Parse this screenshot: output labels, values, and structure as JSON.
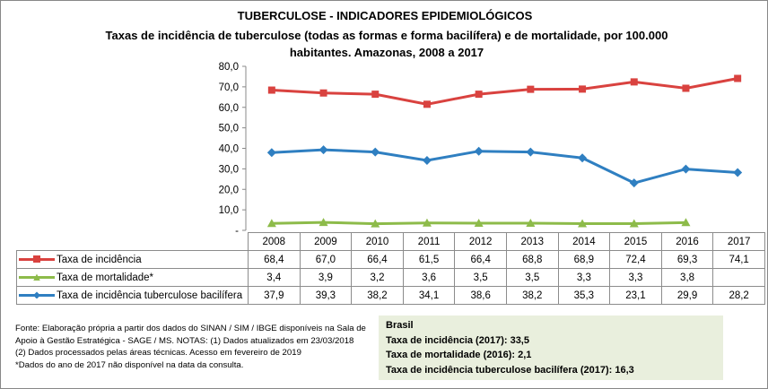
{
  "title": "TUBERCULOSE - INDICADORES EPIDEMIOLÓGICOS",
  "subtitle": "Taxas de incidência de tuberculose (todas as formas e forma bacilífera) e de mortalidade,  por 100.000 habitantes. Amazonas, 2008 a 2017",
  "chart_data": {
    "type": "line",
    "categories": [
      "2008",
      "2009",
      "2010",
      "2011",
      "2012",
      "2013",
      "2014",
      "2015",
      "2016",
      "2017"
    ],
    "ylim": [
      0,
      80
    ],
    "yticks": [
      "-",
      "10,0",
      "20,0",
      "30,0",
      "40,0",
      "50,0",
      "60,0",
      "70,0",
      "80,0"
    ],
    "grid": false,
    "legend": "data-table",
    "series": [
      {
        "name": "Taxa de incidência",
        "color": "#d9423f",
        "marker": "square",
        "values": [
          68.4,
          67.0,
          66.4,
          61.5,
          66.4,
          68.8,
          68.9,
          72.4,
          69.3,
          74.1
        ],
        "labels": [
          "68,4",
          "67,0",
          "66,4",
          "61,5",
          "66,4",
          "68,8",
          "68,9",
          "72,4",
          "69,3",
          "74,1"
        ]
      },
      {
        "name": "Taxa de mortalidade*",
        "color": "#8dbb4a",
        "marker": "triangle",
        "values": [
          3.4,
          3.9,
          3.2,
          3.6,
          3.5,
          3.5,
          3.3,
          3.3,
          3.8,
          null
        ],
        "labels": [
          "3,4",
          "3,9",
          "3,2",
          "3,6",
          "3,5",
          "3,5",
          "3,3",
          "3,3",
          "3,8",
          ""
        ]
      },
      {
        "name": "Taxa de incidência tuberculose bacilífera",
        "color": "#2f7fc1",
        "marker": "diamond",
        "values": [
          37.9,
          39.3,
          38.2,
          34.1,
          38.6,
          38.2,
          35.3,
          23.1,
          29.9,
          28.2
        ],
        "labels": [
          "37,9",
          "39,3",
          "38,2",
          "34,1",
          "38,6",
          "38,2",
          "35,3",
          "23,1",
          "29,9",
          "28,2"
        ]
      }
    ]
  },
  "notes": [
    "Fonte: Elaboração própria a partir dos dados do SINAN / SIM / IBGE disponíveis na Sala de Apoio à Gestão Estratégica - SAGE / MS. NOTAS: (1) Dados atualizados em 23/03/2018",
    "(2) Dados processados pelas áreas técnicas. Acesso em fevereiro de 2019",
    "*Dados do ano de 2017 não disponível na data da consulta."
  ],
  "brasil": {
    "heading": "Brasil",
    "lines": [
      "Taxa de incidência (2017): 33,5",
      "Taxa de mortalidade (2016): 2,1",
      "Taxa de incidência tuberculose bacilífera (2017): 16,3"
    ]
  }
}
